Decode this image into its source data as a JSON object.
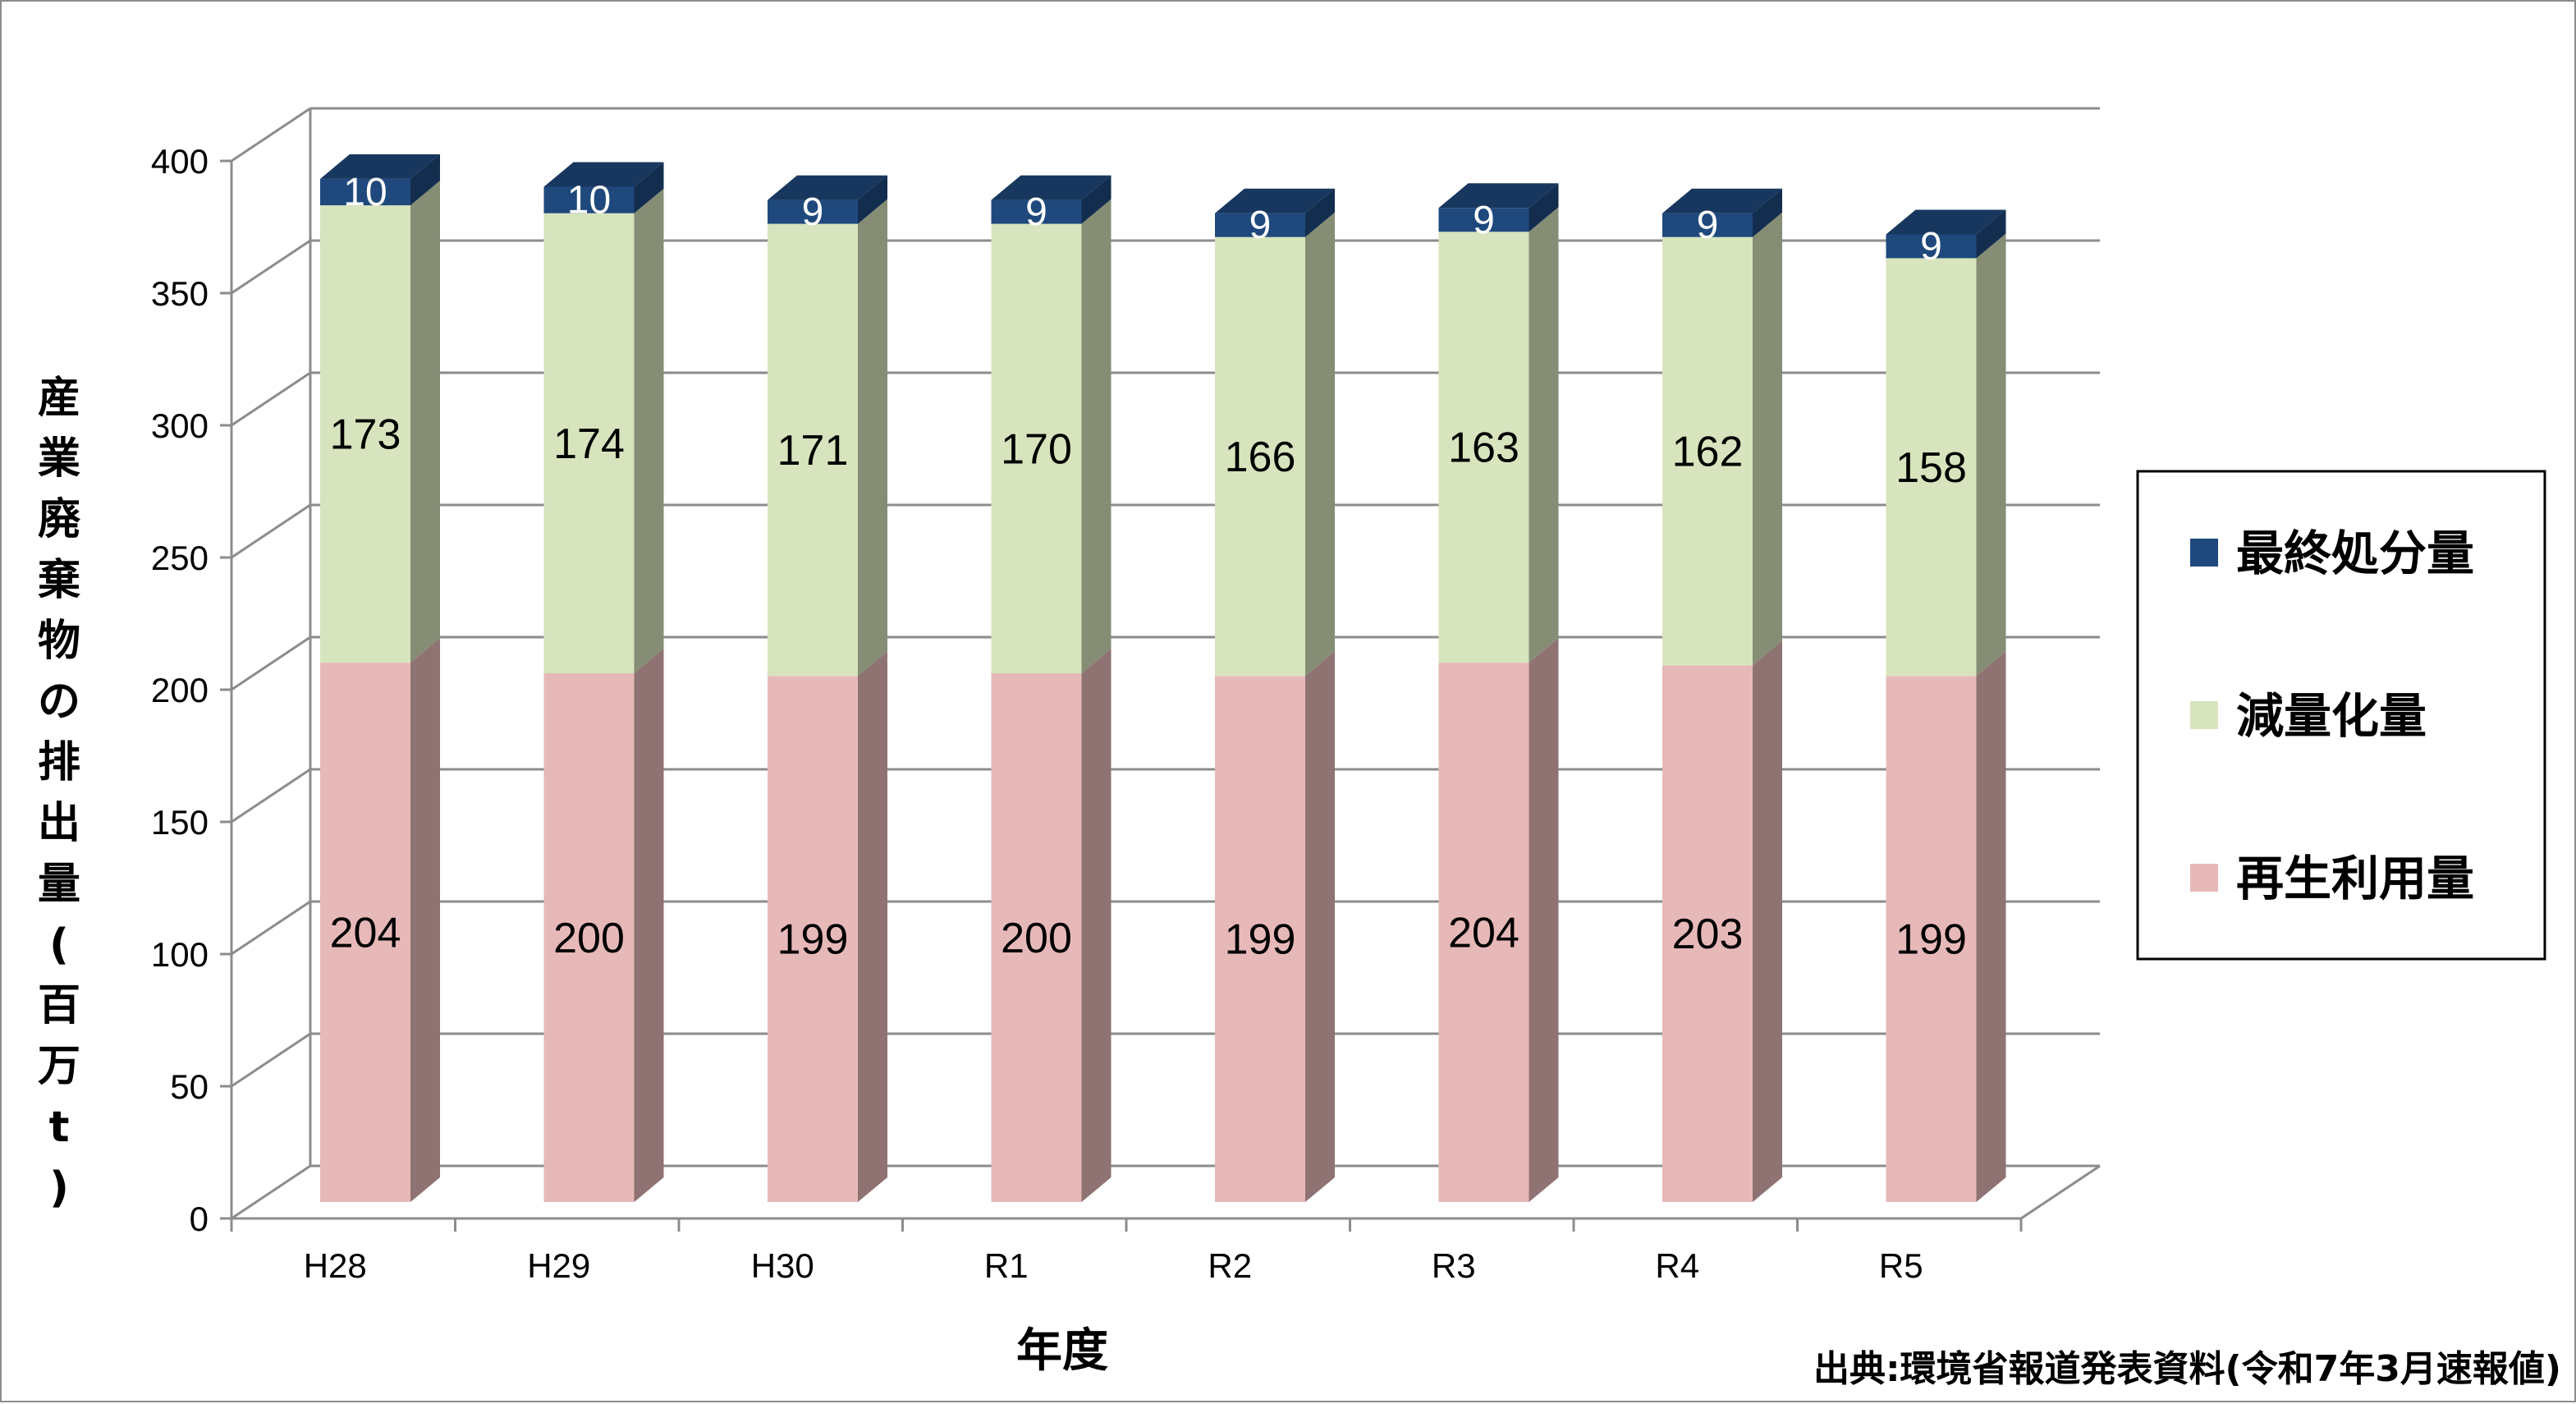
{
  "chart_data": {
    "type": "bar",
    "stacked": true,
    "three_d": true,
    "categories": [
      "H28",
      "H29",
      "H30",
      "R1",
      "R2",
      "R3",
      "R4",
      "R5"
    ],
    "series": [
      {
        "name": "再生利用量",
        "color": "#e6b9b8",
        "values": [
          204,
          200,
          199,
          200,
          199,
          204,
          203,
          199
        ]
      },
      {
        "name": "減量化量",
        "color": "#d7e4bd",
        "values": [
          173,
          174,
          171,
          170,
          166,
          163,
          162,
          158
        ]
      },
      {
        "name": "最終処分量",
        "color": "#1f497d",
        "values": [
          10,
          10,
          9,
          9,
          9,
          9,
          9,
          9
        ]
      }
    ],
    "xlabel": "年度",
    "ylabel": "産業廃棄物の排出量(百万t)",
    "ylim": [
      0,
      400
    ],
    "yticks": [
      0,
      50,
      100,
      150,
      200,
      250,
      300,
      350,
      400
    ],
    "grid": true,
    "legend": "right",
    "source": "出典:環境省報道発表資料(令和7年3月速報値)"
  }
}
